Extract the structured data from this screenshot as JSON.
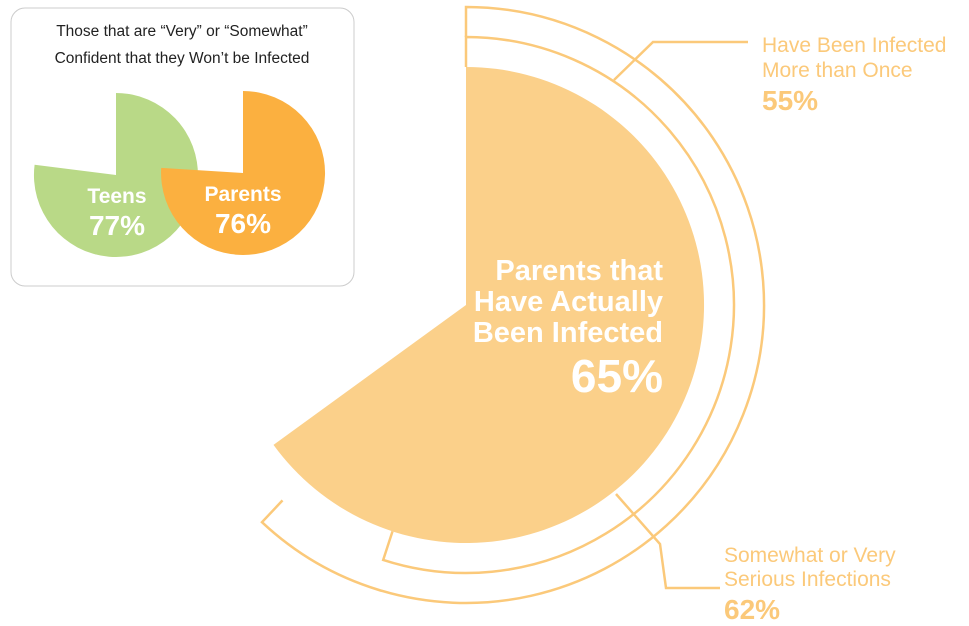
{
  "colors": {
    "teens": "#b9d987",
    "parents_inset": "#fbb040",
    "main_fill": "#fbd08a",
    "arc_stroke": "#fbc97a",
    "callout_text": "#fbc97a",
    "inset_border": "#cccccc"
  },
  "inset": {
    "title_line1": "Those that are “Very” or “Somewhat”",
    "title_line2": "Confident that they Won’t be Infected"
  },
  "chart_data": [
    {
      "type": "pie",
      "title": "Those that are “Very” or “Somewhat” Confident that they Won’t be Infected",
      "slices": [
        {
          "label": "Teens",
          "value": 77,
          "value_label": "77%"
        },
        {
          "label": "Parents",
          "value": 76,
          "value_label": "76%"
        }
      ]
    },
    {
      "type": "pie",
      "main": {
        "label_line1": "Parents that",
        "label_line2": "Have Actually",
        "label_line3": "Been Infected",
        "value": 65,
        "value_label": "65%"
      },
      "arcs": [
        {
          "line1": "Somewhat or Very",
          "line2": "Serious Infections",
          "value": 62,
          "value_label": "62%"
        },
        {
          "line1": "Have Been Infected",
          "line2": "More than Once",
          "value": 55,
          "value_label": "55%"
        }
      ]
    }
  ]
}
